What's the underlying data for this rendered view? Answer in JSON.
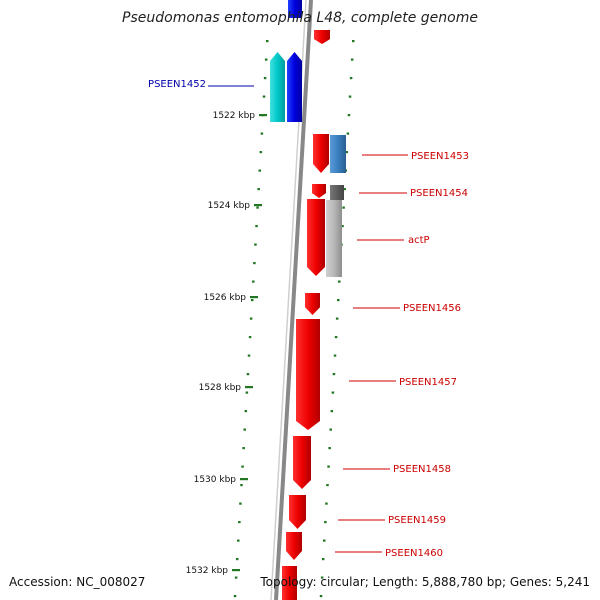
{
  "title": "Pseudomonas entomophila L48, complete genome",
  "accession": "Accession: NC_008027",
  "topology": "Topology: circular; Length: 5,888,780 bp; Genes: 5,241",
  "colors": {
    "forward_gene": "#ee0000",
    "reverse_gene": "#0000dd",
    "cyan_gene": "#00c8c8",
    "steelblue_gene": "#3a7fbf",
    "gray_gene": "#888888",
    "label_red": "#cc0000",
    "label_blue": "#0000aa",
    "tick_green": "#227722",
    "backbone": "#888888"
  },
  "ticks": [
    {
      "label": "1522 kbp"
    },
    {
      "label": "1524 kbp"
    },
    {
      "label": "1526 kbp"
    },
    {
      "label": "1528 kbp"
    },
    {
      "label": "1530 kbp"
    },
    {
      "label": "1532 kbp"
    }
  ],
  "gene_labels": [
    {
      "label": "PSEEN1452"
    },
    {
      "label": "PSEEN1453"
    },
    {
      "label": "PSEEN1454"
    },
    {
      "label": "actP"
    },
    {
      "label": "PSEEN1456"
    },
    {
      "label": "PSEEN1457"
    },
    {
      "label": "PSEEN1458"
    },
    {
      "label": "PSEEN1459"
    },
    {
      "label": "PSEEN1460"
    }
  ]
}
